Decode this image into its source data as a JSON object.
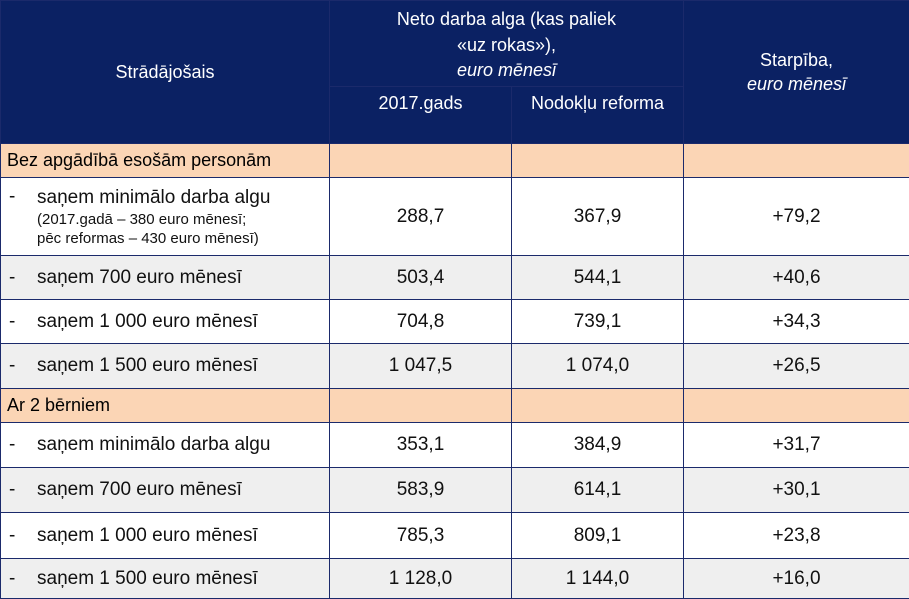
{
  "header": {
    "col_worker": "Strādājošais",
    "net_title": "Neto darba alga (kas paliek «uz rokas»),",
    "net_unit": "euro mēnesī",
    "col_2017": "2017.gads",
    "col_reform": "Nodokļu reforma",
    "diff_title": "Starpība,",
    "diff_unit": "euro mēnesī"
  },
  "sections": [
    {
      "title": "Bez apgādībā esošām personām",
      "rows": [
        {
          "dash": "-",
          "label": "saņem minimālo darba algu",
          "note1": "(2017.gadā – 380 euro mēnesī;",
          "note2": "pēc reformas – 430 euro mēnesī)",
          "v2017": "288,7",
          "reform": "367,9",
          "diff": "+79,2"
        },
        {
          "dash": "-",
          "label": "saņem 700 euro mēnesī",
          "v2017": "503,4",
          "reform": "544,1",
          "diff": "+40,6"
        },
        {
          "dash": "-",
          "label": "saņem 1 000 euro mēnesī",
          "v2017": "704,8",
          "reform": "739,1",
          "diff": "+34,3"
        },
        {
          "dash": "-",
          "label": "saņem 1 500 euro mēnesī",
          "v2017": "1 047,5",
          "reform": "1 074,0",
          "diff": "+26,5"
        }
      ]
    },
    {
      "title": "Ar 2 bērniem",
      "rows": [
        {
          "dash": "-",
          "label": "saņem minimālo darba algu",
          "v2017": "353,1",
          "reform": "384,9",
          "diff": "+31,7"
        },
        {
          "dash": "-",
          "label": "saņem 700 euro mēnesī",
          "v2017": "583,9",
          "reform": "614,1",
          "diff": "+30,1"
        },
        {
          "dash": "-",
          "label": "saņem 1 000 euro mēnesī",
          "v2017": "785,3",
          "reform": "809,1",
          "diff": "+23,8"
        },
        {
          "dash": "-",
          "label": "saņem 1 500 euro mēnesī",
          "v2017": "1 128,0",
          "reform": "1 144,0",
          "diff": "+16,0"
        }
      ]
    }
  ],
  "colors": {
    "header_bg": "#0b2163",
    "section_bg": "#fbd5b5",
    "diff_text": "#d81f1f",
    "alt_row": "#efefef"
  }
}
